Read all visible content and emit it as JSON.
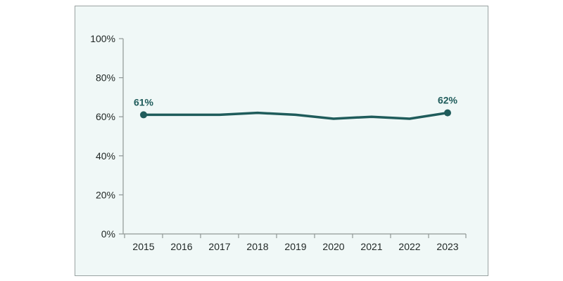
{
  "chart_data": {
    "type": "line",
    "title": "",
    "xlabel": "",
    "ylabel": "",
    "categories": [
      "2015",
      "2016",
      "2017",
      "2018",
      "2019",
      "2020",
      "2021",
      "2022",
      "2023"
    ],
    "series": [
      {
        "values": [
          61,
          61,
          61,
          62,
          61,
          59,
          60,
          59,
          62
        ],
        "color": "#1f5c5b"
      }
    ],
    "ylim": [
      0,
      100
    ],
    "yticks": [
      0,
      20,
      40,
      60,
      80,
      100
    ],
    "ytick_suffix": "%",
    "grid": false,
    "point_labels": [
      {
        "index": 0,
        "text": "61%"
      },
      {
        "index": 8,
        "text": "62%"
      }
    ],
    "colors": {
      "panel_background": "#f0f8f7",
      "axis": "#8f9796",
      "series": "#1f5c5b"
    }
  }
}
